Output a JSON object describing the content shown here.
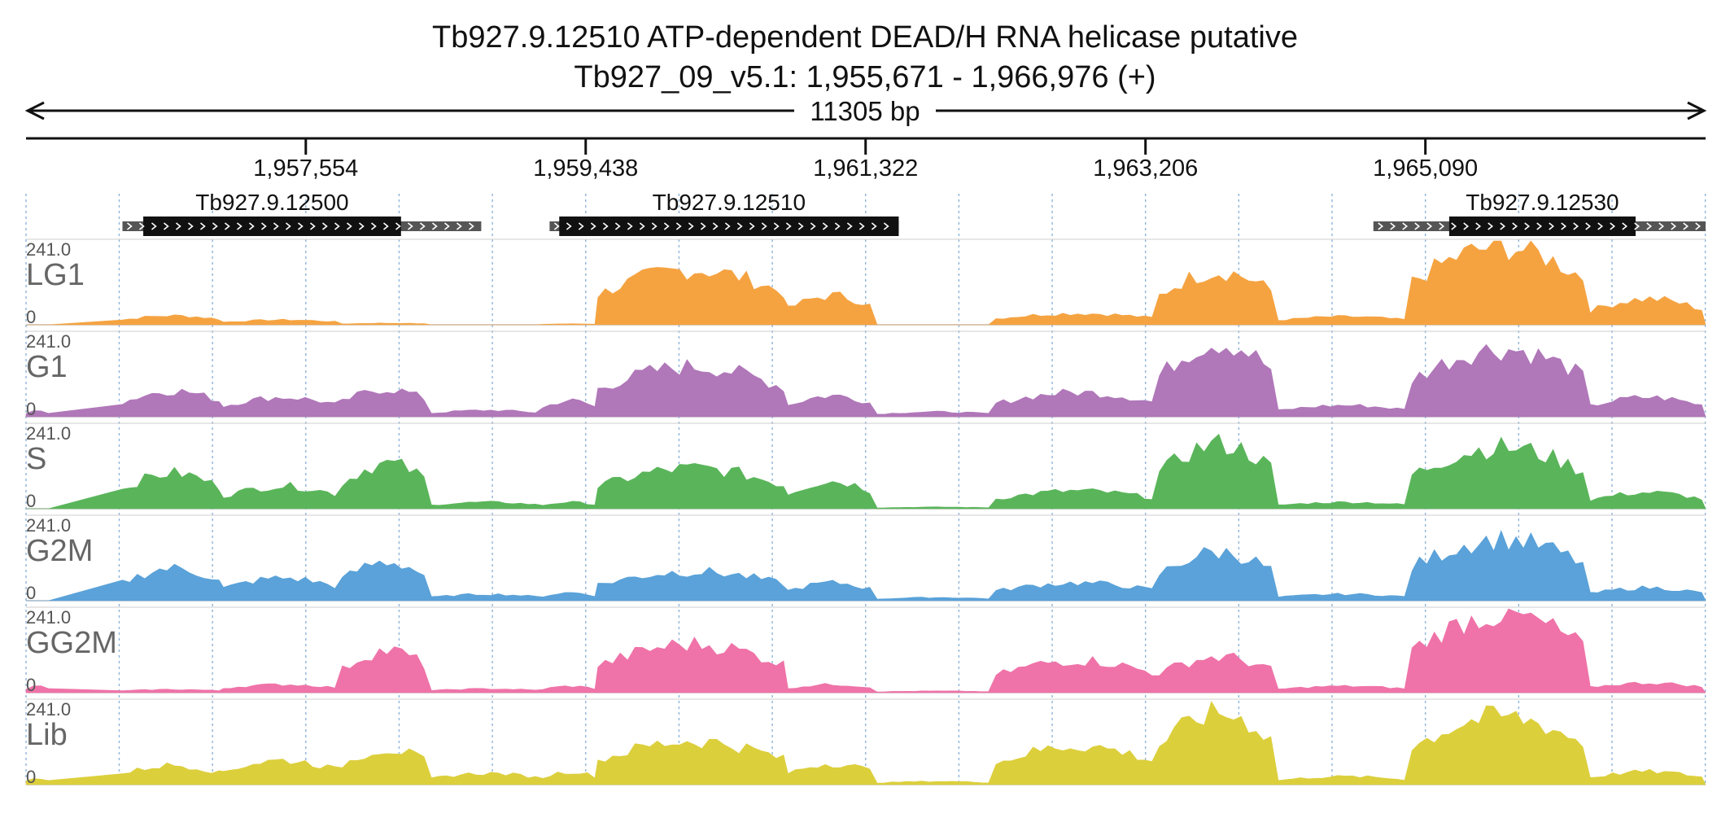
{
  "header": {
    "title": "Tb927.9.12510  ATP-dependent DEAD/H RNA helicase  putative",
    "subtitle": "Tb927_09_v5.1: 1,955,671 - 1,966,976 (+)",
    "span_label": "11305 bp"
  },
  "chart_data": {
    "type": "area",
    "region": {
      "chromosome": "Tb927_09_v5.1",
      "start": 1955671,
      "end": 1966976,
      "strand": "+"
    },
    "x_ticks": [
      {
        "value": 1957554,
        "label": "1,957,554"
      },
      {
        "value": 1959438,
        "label": "1,959,438"
      },
      {
        "value": 1961322,
        "label": "1,961,322"
      },
      {
        "value": 1963206,
        "label": "1,963,206"
      },
      {
        "value": 1965090,
        "label": "1,965,090"
      }
    ],
    "genes": [
      {
        "name": "Tb927.9.12500",
        "utr_start": 1956320,
        "utr_end": 1958735,
        "cds_start": 1956460,
        "cds_end": 1958195
      },
      {
        "name": "Tb927.9.12510",
        "utr_start": 1959195,
        "utr_end": 1961545,
        "cds_start": 1959260,
        "cds_end": 1961545
      },
      {
        "name": "Tb927.9.12530",
        "utr_start": 1964740,
        "utr_end": 1967310,
        "cds_start": 1965250,
        "cds_end": 1967310
      }
    ],
    "y_range": [
      0,
      241.0
    ],
    "ymax_label": "241.0",
    "ymin_label": "0",
    "series": [
      {
        "name": "LG1",
        "color": "#f5a341"
      },
      {
        "name": "G1",
        "color": "#b077b9"
      },
      {
        "name": "S",
        "color": "#5ab55a"
      },
      {
        "name": "G2M",
        "color": "#5aa2d9"
      },
      {
        "name": "GG2M",
        "color": "#ef73a8"
      },
      {
        "name": "Lib",
        "color": "#dccf3c"
      }
    ],
    "coverage_profile": {
      "x_step": 50,
      "segments": [
        {
          "start": 1955671,
          "end": 1955840,
          "levels": [
            0,
            18,
            0,
            0,
            20,
            20
          ]
        },
        {
          "start": 1956320,
          "end": 1957000,
          "levels": [
            28,
            80,
            110,
            100,
            10,
            60
          ]
        },
        {
          "start": 1957000,
          "end": 1957800,
          "levels": [
            15,
            60,
            70,
            70,
            25,
            75
          ]
        },
        {
          "start": 1957800,
          "end": 1958400,
          "levels": [
            5,
            85,
            140,
            120,
            130,
            110
          ]
        },
        {
          "start": 1958400,
          "end": 1959150,
          "levels": [
            0,
            20,
            20,
            20,
            12,
            35
          ]
        },
        {
          "start": 1959150,
          "end": 1959520,
          "levels": [
            3,
            50,
            20,
            25,
            20,
            40
          ]
        },
        {
          "start": 1959520,
          "end": 1960800,
          "levels": [
            170,
            155,
            125,
            90,
            150,
            135
          ]
        },
        {
          "start": 1960800,
          "end": 1961400,
          "levels": [
            90,
            65,
            85,
            55,
            25,
            65
          ]
        },
        {
          "start": 1961400,
          "end": 1962200,
          "levels": [
            0,
            15,
            5,
            10,
            5,
            10
          ]
        },
        {
          "start": 1962200,
          "end": 1963300,
          "levels": [
            35,
            75,
            55,
            55,
            100,
            120
          ]
        },
        {
          "start": 1963300,
          "end": 1964100,
          "levels": [
            165,
            230,
            200,
            150,
            110,
            220
          ]
        },
        {
          "start": 1964100,
          "end": 1965000,
          "levels": [
            25,
            35,
            20,
            20,
            20,
            25
          ]
        },
        {
          "start": 1965000,
          "end": 1966200,
          "levels": [
            241,
            210,
            190,
            190,
            241,
            210
          ]
        },
        {
          "start": 1966200,
          "end": 1966976,
          "levels": [
            80,
            60,
            50,
            40,
            30,
            40
          ]
        }
      ]
    },
    "grid": true,
    "legend": "none"
  }
}
